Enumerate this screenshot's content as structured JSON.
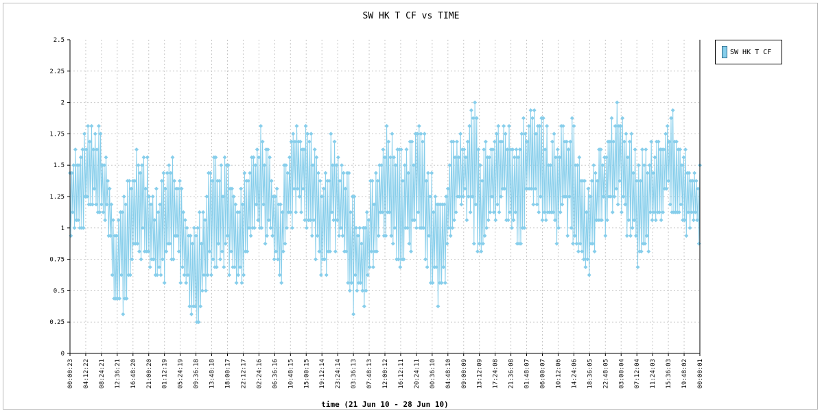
{
  "chart_data": {
    "type": "line",
    "title": "SW HK T CF vs TIME",
    "xlabel": "time (21 Jun 10 - 28 Jun 10)",
    "ylabel": "",
    "ylim": [
      0,
      2.5
    ],
    "yticks": [
      "0",
      "0.25",
      "0.5",
      "0.75",
      "1",
      "1.25",
      "1.5",
      "1.75",
      "2",
      "2.25",
      "2.5"
    ],
    "xticks": [
      "00:00:23",
      "04:12:22",
      "08:24:21",
      "12:36:21",
      "16:48:20",
      "21:00:20",
      "01:12:19",
      "05:24:19",
      "09:36:18",
      "13:48:18",
      "18:00:17",
      "22:12:17",
      "02:24:16",
      "06:36:16",
      "10:48:15",
      "15:00:15",
      "19:12:14",
      "23:24:14",
      "03:36:13",
      "07:48:13",
      "12:00:12",
      "16:12:11",
      "20:24:11",
      "00:36:10",
      "04:48:10",
      "09:00:09",
      "13:12:09",
      "17:24:08",
      "21:36:08",
      "01:48:07",
      "06:00:07",
      "10:12:06",
      "14:24:06",
      "18:36:05",
      "22:48:05",
      "03:00:04",
      "07:12:04",
      "11:24:03",
      "15:36:03",
      "19:48:02",
      "00:00:01"
    ],
    "grid": true,
    "legend_position": "right",
    "series": [
      {
        "name": "SW HK T CF",
        "color": "#87ceeb",
        "envelope": {
          "x_hours": [
            0,
            2,
            4,
            6,
            8,
            10,
            12,
            14,
            16,
            18,
            20,
            22,
            24,
            26,
            28,
            30,
            32,
            34,
            36,
            38,
            40,
            42,
            44,
            46,
            48,
            50,
            52,
            54,
            56,
            58,
            60,
            62,
            64,
            66,
            68,
            70,
            72,
            74,
            76,
            78,
            80,
            82,
            84,
            86,
            88,
            90,
            92,
            94,
            96,
            98,
            100,
            102,
            104,
            106,
            108,
            110,
            112,
            114,
            116,
            118,
            120,
            122,
            124,
            126,
            128,
            130,
            132,
            134,
            136,
            138,
            140,
            142,
            144,
            146,
            148,
            150,
            152,
            154,
            156,
            158,
            160,
            162,
            164,
            166,
            168
          ],
          "max": [
            1.6,
            1.75,
            1.85,
            1.9,
            1.85,
            1.6,
            1.1,
            1.3,
            1.55,
            1.65,
            1.65,
            1.35,
            1.35,
            1.55,
            1.6,
            1.35,
            1.1,
            1.05,
            1.35,
            1.6,
            1.6,
            1.6,
            1.3,
            1.4,
            1.6,
            1.85,
            1.8,
            1.55,
            1.3,
            1.65,
            1.9,
            1.9,
            1.8,
            1.6,
            1.5,
            1.8,
            1.7,
            1.5,
            1.3,
            1.2,
            1.35,
            1.6,
            1.8,
            1.8,
            1.65,
            1.65,
            1.8,
            1.85,
            1.55,
            1.3,
            1.35,
            1.8,
            1.85,
            1.85,
            2.05,
            1.7,
            1.8,
            1.95,
            1.95,
            1.7,
            1.85,
            1.9,
            2.05,
            2.05,
            1.7,
            1.85,
            1.95,
            1.95,
            1.6,
            1.4,
            1.55,
            1.8,
            1.95,
            2.05,
            2.0,
            1.75,
            1.6,
            1.7,
            1.75,
            1.9,
            2.0,
            1.85,
            1.7,
            1.55,
            1.5
          ],
          "min": [
            0.85,
            0.8,
            1.0,
            1.1,
            1.05,
            0.95,
            0.35,
            0.3,
            0.55,
            0.65,
            0.65,
            0.55,
            0.4,
            0.55,
            0.65,
            0.5,
            0.3,
            0.1,
            0.35,
            0.65,
            0.65,
            0.55,
            0.4,
            0.55,
            0.85,
            0.9,
            0.9,
            0.65,
            0.45,
            0.75,
            1.05,
            1.05,
            0.9,
            0.65,
            0.55,
            0.75,
            0.8,
            0.5,
            0.3,
            0.3,
            0.55,
            0.8,
            0.9,
            0.85,
            0.65,
            0.75,
            0.85,
            0.9,
            0.55,
            0.3,
            0.55,
            0.85,
            1.1,
            1.05,
            0.85,
            0.75,
            0.95,
            1.1,
            1.1,
            0.95,
            0.85,
            1.0,
            1.05,
            1.05,
            0.9,
            0.85,
            0.95,
            0.85,
            0.7,
            0.55,
            0.75,
            0.9,
            1.05,
            1.05,
            0.9,
            0.75,
            0.6,
            0.8,
            0.95,
            1.05,
            1.1,
            1.05,
            0.95,
            0.9,
            0.9
          ]
        }
      }
    ]
  }
}
